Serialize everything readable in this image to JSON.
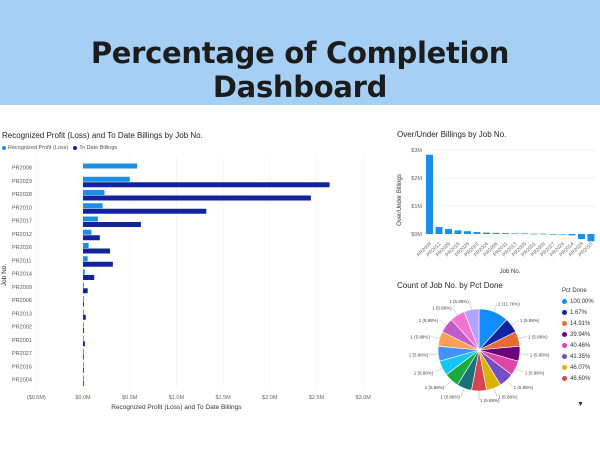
{
  "header": {
    "title": "Percentage of Completion Dashboard"
  },
  "colors": {
    "series1": "#1b8fe6",
    "series2": "#12239e",
    "header_bg": "#a6cff5"
  },
  "bar_panel": {
    "title": "Recognized Profit (Loss) and To Date Billings by Job No.",
    "legend": [
      "Recognized Profit (Loss)",
      "To Date Billings"
    ]
  },
  "over_under_panel": {
    "title": "Over/Under Billings by Job No."
  },
  "pie_panel": {
    "title": "Count of Job No. by Pct Done",
    "legend_title": "Pct Done"
  },
  "chart_data": [
    {
      "type": "bar",
      "orientation": "horizontal",
      "title": "Recognized Profit (Loss) and To Date Billings by Job No.",
      "xlabel": "Recognized Profit (Loss) and To Date Billings",
      "ylabel": "Job No.",
      "xlim": [
        -0.5,
        3.0
      ],
      "x_ticks": [
        "($0.5M)",
        "$0.0M",
        "$0.5M",
        "$1.0M",
        "$1.5M",
        "$2.0M",
        "$2.5M",
        "$3.0M"
      ],
      "x_tick_values": [
        -0.5,
        0,
        0.5,
        1.0,
        1.5,
        2.0,
        2.5,
        3.0
      ],
      "categories": [
        "PR2008",
        "PR2029",
        "PR2028",
        "PR2010",
        "PR2017",
        "PR2012",
        "PR2026",
        "PR2011",
        "PR2014",
        "PR2009",
        "PR2006",
        "PR2013",
        "PR2002",
        "PR2001",
        "PR2027",
        "PR2016",
        "PR2004"
      ],
      "series": [
        {
          "name": "Recognized Profit (Loss)",
          "values": [
            0.58,
            0.5,
            0.23,
            0.21,
            0.16,
            0.09,
            0.06,
            0.05,
            0.02,
            0.01,
            0.005,
            0.004,
            0.003,
            0.003,
            0.002,
            0.002,
            0.002
          ]
        },
        {
          "name": "To Date Billings",
          "values": [
            0.0,
            2.64,
            2.44,
            1.32,
            0.62,
            0.18,
            0.29,
            0.32,
            0.12,
            0.05,
            0.01,
            0.03,
            0.01,
            0.02,
            0.005,
            0.005,
            0.004
          ]
        }
      ],
      "legend": "top-left"
    },
    {
      "type": "bar",
      "title": "Over/Under Billings by Job No.",
      "xlabel": "Job No.",
      "ylabel": "Over/Under Billings",
      "ylim": [
        -0.5,
        3.0
      ],
      "y_ticks": [
        "$0M",
        "$1M",
        "$2M",
        "$3M"
      ],
      "y_tick_values": [
        0,
        1,
        2,
        3
      ],
      "categories": [
        "PR2008",
        "PR2012",
        "PR2029",
        "PR2016",
        "PR2026",
        "PR2002",
        "PR2004",
        "PR2006",
        "PR2011",
        "PR2013",
        "PR2005",
        "PR2001",
        "PR2009",
        "PR2027",
        "PR2024",
        "PR2014",
        "PR2028",
        "PR2010"
      ],
      "values": [
        2.83,
        0.25,
        0.18,
        0.13,
        0.1,
        0.07,
        0.05,
        0.04,
        0.03,
        0.02,
        0.02,
        0.01,
        0.01,
        0.0,
        -0.02,
        -0.05,
        -0.18,
        -0.26
      ]
    },
    {
      "type": "pie",
      "title": "Count of Job No. by Pct Done",
      "legend_title": "Pct Done",
      "slices": [
        {
          "label": "100.00%",
          "value": 2,
          "pct": "11.76%",
          "color": "#118dff"
        },
        {
          "label": "1.67%",
          "value": 1,
          "pct": "5.88%",
          "color": "#12239e"
        },
        {
          "label": "14.91%",
          "value": 1,
          "pct": "5.88%",
          "color": "#e66c37"
        },
        {
          "label": "39.94%",
          "value": 1,
          "pct": "5.88%",
          "color": "#6b007b"
        },
        {
          "label": "40.46%",
          "value": 1,
          "pct": "5.88%",
          "color": "#e044a7"
        },
        {
          "label": "41.35%",
          "value": 1,
          "pct": "5.88%",
          "color": "#744ec2"
        },
        {
          "label": "46.07%",
          "value": 1,
          "pct": "5.88%",
          "color": "#d9b300"
        },
        {
          "label": "46.60%",
          "value": 1,
          "pct": "5.88%",
          "color": "#d64550"
        },
        {
          "label": "",
          "value": 1,
          "pct": "5.88%",
          "color": "#197278"
        },
        {
          "label": "",
          "value": 1,
          "pct": "5.88%",
          "color": "#1aab40"
        },
        {
          "label": "",
          "value": 1,
          "pct": "5.88%",
          "color": "#15c6f4"
        },
        {
          "label": "",
          "value": 1,
          "pct": "5.88%",
          "color": "#4092ff"
        },
        {
          "label": "",
          "value": 1,
          "pct": "5.88%",
          "color": "#ffa058"
        },
        {
          "label": "",
          "value": 1,
          "pct": "5.88%",
          "color": "#be5dc9"
        },
        {
          "label": "",
          "value": 1,
          "pct": "5.88%",
          "color": "#f472d0"
        },
        {
          "label": "",
          "value": 1,
          "pct": "5.88%",
          "color": "#b5a1ff"
        }
      ]
    }
  ]
}
